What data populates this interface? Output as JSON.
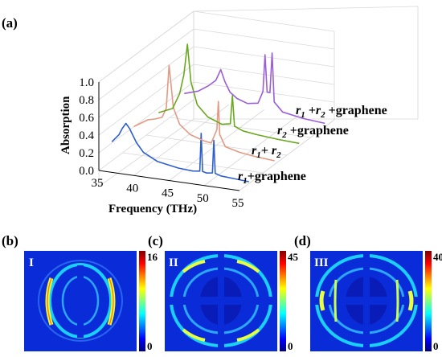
{
  "panels": {
    "a": "(a)",
    "b": "(b)",
    "c": "(c)",
    "d": "(d)"
  },
  "chart_data": {
    "type": "line",
    "subtype": "3d-waterfall",
    "xlabel": "Frequency (THz)",
    "ylabel": "Absorption",
    "xlim": [
      35,
      55
    ],
    "ylim": [
      0,
      1.0
    ],
    "x_ticks": [
      "35",
      "40",
      "45",
      "50",
      "55"
    ],
    "y_ticks": [
      "0.0",
      "0.2",
      "0.4",
      "0.6",
      "0.8",
      "1.0"
    ],
    "series": [
      {
        "name": "r1+graphene",
        "color": "#2d5fd0",
        "x": [
          35.5,
          36.5,
          37.0,
          37.5,
          38.0,
          39.0,
          40.0,
          42.0,
          45.0,
          47.0,
          48.0,
          48.2,
          48.4,
          49.0,
          49.8,
          50.0,
          50.2,
          51.0,
          53.0,
          55.0
        ],
        "y": [
          0.25,
          0.34,
          0.42,
          0.48,
          0.43,
          0.28,
          0.18,
          0.1,
          0.06,
          0.05,
          0.06,
          0.49,
          0.06,
          0.05,
          0.06,
          0.43,
          0.06,
          0.04,
          0.03,
          0.02
        ]
      },
      {
        "name": "r1+r2",
        "color": "#e39a84",
        "x": [
          35.0,
          37.0,
          38.0,
          39.0,
          39.6,
          40.0,
          40.6,
          41.5,
          43.0,
          45.0,
          46.0,
          46.8,
          47.0,
          47.2,
          48.0,
          50.0,
          52.0,
          55.0
        ],
        "y": [
          0.2,
          0.3,
          0.32,
          0.35,
          0.46,
          0.95,
          0.48,
          0.3,
          0.2,
          0.15,
          0.14,
          0.3,
          0.62,
          0.25,
          0.12,
          0.08,
          0.06,
          0.04
        ]
      },
      {
        "name": "r2+graphene",
        "color": "#6aa820",
        "x": [
          35.0,
          37.0,
          38.0,
          38.6,
          39.1,
          39.6,
          40.5,
          42.0,
          44.0,
          45.2,
          45.5,
          45.8,
          47.0,
          49.0,
          52.0,
          55.0
        ],
        "y": [
          0.15,
          0.22,
          0.4,
          0.62,
          0.97,
          0.55,
          0.3,
          0.18,
          0.12,
          0.14,
          0.46,
          0.12,
          0.08,
          0.06,
          0.04,
          0.03
        ]
      },
      {
        "name": "r1+r2+graphene",
        "color": "#9c5fd6",
        "x": [
          35.0,
          37.0,
          38.5,
          39.5,
          40.2,
          40.8,
          41.5,
          42.5,
          44.0,
          45.5,
          46.2,
          46.5,
          46.8,
          47.2,
          47.5,
          47.8,
          49.0,
          52.0,
          55.0
        ],
        "y": [
          0.15,
          0.2,
          0.28,
          0.35,
          0.48,
          0.35,
          0.24,
          0.18,
          0.14,
          0.16,
          0.3,
          0.72,
          0.3,
          0.3,
          0.75,
          0.2,
          0.1,
          0.06,
          0.04
        ]
      }
    ]
  },
  "labels": {
    "s1": {
      "a": "r",
      "sub": "1",
      "b": "+graphene"
    },
    "s2": {
      "a": "r",
      "sub1": "1",
      "mid": "+ r",
      "sub2": "2"
    },
    "s3": {
      "a": "r",
      "sub": "2",
      "b": " +graphene"
    },
    "s4": {
      "a": "r",
      "sub1": "1",
      "mid": " +r",
      "sub2": "2",
      "b": " +graphene"
    }
  },
  "maps": [
    {
      "roman": "I",
      "cmax": "16",
      "cmin": "0"
    },
    {
      "roman": "II",
      "cmax": "45",
      "cmin": "0"
    },
    {
      "roman": "III",
      "cmax": "40",
      "cmin": "0"
    }
  ],
  "colors": {
    "map_bg": "#0a2cd8",
    "colormap": [
      "#00007f",
      "#0000ff",
      "#007fff",
      "#00ffff",
      "#7fff7f",
      "#ffff00",
      "#ff7f00",
      "#ff0000",
      "#7f0000"
    ]
  }
}
